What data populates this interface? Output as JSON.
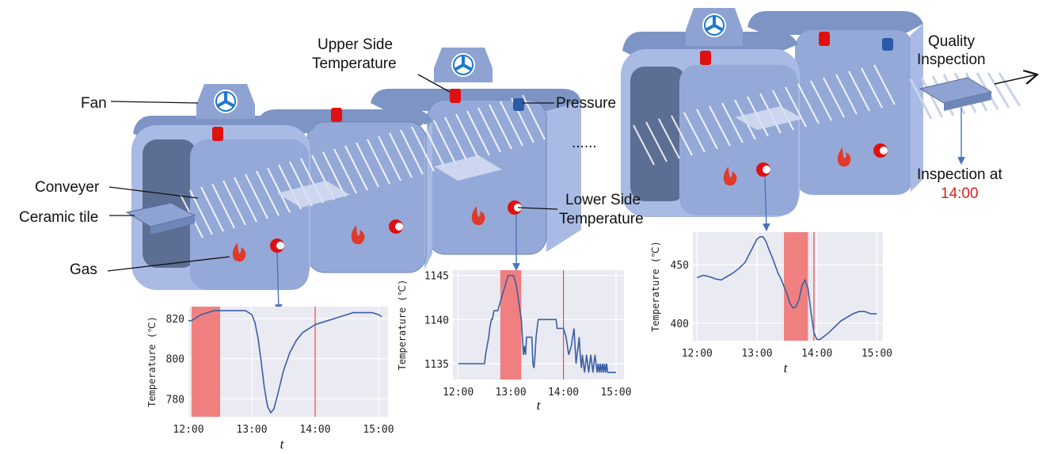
{
  "labels": {
    "fan": "Fan",
    "upper_side_1": "Upper Side",
    "upper_side_2": "Temperature",
    "pressure": "Pressure",
    "quality_1": "Quality",
    "quality_2": "Inspection",
    "conveyer": "Conveyer",
    "ceramic_tile": "Ceramic tile",
    "gas": "Gas",
    "lower_side_1": "Lower Side",
    "lower_side_2": "Temperature",
    "ellipsis": "......",
    "inspection_at": "Inspection at",
    "inspection_time": "14:00"
  },
  "colors": {
    "kiln_top": "#7d94c5",
    "kiln_front": "#95a9d8",
    "kiln_side": "#a9bbe4",
    "sensor_red": "#e01010",
    "sensor_blue": "#2a5aa8",
    "highlight_band": "#f08080",
    "marker_line": "#ee4444",
    "series_line": "#3a5fa6",
    "inspection_time": "#e02020"
  },
  "chart_data": [
    {
      "type": "line",
      "ylabel": "Temperature (℃)",
      "xlabel": "t",
      "xticks": [
        "12:00",
        "13:00",
        "14:00",
        "15:00"
      ],
      "xlim": [
        12.0,
        15.15
      ],
      "yticks": [
        780,
        800,
        820
      ],
      "ylim": [
        771,
        826
      ],
      "highlight": [
        12.05,
        12.5
      ],
      "marker": 14.0,
      "x": [
        12.0,
        12.05,
        12.1,
        12.2,
        12.3,
        12.4,
        12.5,
        12.6,
        12.7,
        12.8,
        12.9,
        13.0,
        13.05,
        13.1,
        13.15,
        13.2,
        13.25,
        13.3,
        13.35,
        13.4,
        13.5,
        13.6,
        13.7,
        13.8,
        13.9,
        14.0,
        14.1,
        14.2,
        14.3,
        14.4,
        14.5,
        14.6,
        14.7,
        14.8,
        14.9,
        15.0,
        15.05
      ],
      "y": [
        819,
        819,
        820,
        822,
        823,
        824,
        824,
        824,
        824,
        824,
        824,
        822,
        818,
        810,
        798,
        785,
        776,
        773,
        775,
        781,
        794,
        803,
        809,
        813,
        815,
        817,
        818,
        819,
        820,
        821,
        822,
        823,
        823,
        823,
        823,
        822,
        821
      ]
    },
    {
      "type": "line",
      "ylabel": "Temperature (℃)",
      "xlabel": "t",
      "xticks": [
        "12:00",
        "13:00",
        "14:00",
        "15:00"
      ],
      "xlim": [
        11.9,
        15.15
      ],
      "yticks": [
        1135,
        1140,
        1145
      ],
      "ylim": [
        1133.2,
        1145.6
      ],
      "highlight": [
        12.8,
        13.2
      ],
      "marker": 14.0,
      "x": [
        12.0,
        12.5,
        12.52,
        12.55,
        12.58,
        12.6,
        12.63,
        12.65,
        12.68,
        12.7,
        12.75,
        12.8,
        12.85,
        12.9,
        12.95,
        13.0,
        13.05,
        13.1,
        13.15,
        13.2,
        13.22,
        13.24,
        13.26,
        13.28,
        13.3,
        13.32,
        13.4,
        13.42,
        13.44,
        13.46,
        13.48,
        13.5,
        13.52,
        13.54,
        13.56,
        13.58,
        13.6,
        13.62,
        13.64,
        13.66,
        13.68,
        13.7,
        13.72,
        13.74,
        13.76,
        13.78,
        13.8,
        13.82,
        13.84,
        13.86,
        13.88,
        13.9,
        13.95,
        14.0,
        14.05,
        14.1,
        14.15,
        14.2,
        14.22,
        14.24,
        14.26,
        14.28,
        14.3,
        14.32,
        14.34,
        14.36,
        14.38,
        14.4,
        14.42,
        14.44,
        14.46,
        14.48,
        14.5,
        14.52,
        14.54,
        14.56,
        14.58,
        14.6,
        14.62,
        14.64,
        14.66,
        14.68,
        14.7,
        14.72,
        14.74,
        14.76,
        14.78,
        14.8,
        14.82,
        14.84,
        14.86,
        14.88,
        14.9,
        14.92,
        14.94,
        14.96,
        14.98,
        15.0
      ],
      "y": [
        1135,
        1135,
        1136,
        1137,
        1138,
        1139,
        1140,
        1140,
        1141,
        1141,
        1141,
        1142,
        1143,
        1144,
        1145,
        1145,
        1145,
        1144,
        1142,
        1140,
        1138,
        1136,
        1137,
        1136,
        1138,
        1138,
        1138,
        1135,
        1134.5,
        1136,
        1138,
        1139,
        1140,
        1140,
        1140,
        1140,
        1140,
        1140,
        1140,
        1140,
        1140,
        1140,
        1140,
        1140,
        1140,
        1140,
        1140,
        1140,
        1140,
        1140,
        1139,
        1139,
        1139,
        1139,
        1138,
        1136,
        1137,
        1139,
        1137,
        1135,
        1136,
        1137,
        1138,
        1136,
        1134.5,
        1136,
        1135,
        1134,
        1135,
        1136,
        1135,
        1134,
        1135,
        1136,
        1135,
        1134,
        1135,
        1136,
        1135,
        1134,
        1135,
        1134,
        1135,
        1134,
        1135,
        1134,
        1135,
        1134,
        1135,
        1134,
        1134,
        1134,
        1134,
        1134,
        1134,
        1134,
        1134,
        1134
      ]
    },
    {
      "type": "line",
      "ylabel": "Temperature (℃)",
      "xlabel": "t",
      "xticks": [
        "12:00",
        "13:00",
        "14:00",
        "15:00"
      ],
      "xlim": [
        11.93,
        15.1
      ],
      "yticks": [
        400,
        450
      ],
      "ylim": [
        385,
        478
      ],
      "highlight": [
        13.45,
        13.85
      ],
      "marker": 13.95,
      "x": [
        12.0,
        12.1,
        12.2,
        12.3,
        12.4,
        12.5,
        12.6,
        12.7,
        12.8,
        12.9,
        13.0,
        13.05,
        13.1,
        13.15,
        13.2,
        13.25,
        13.3,
        13.35,
        13.4,
        13.5,
        13.55,
        13.6,
        13.65,
        13.7,
        13.75,
        13.8,
        13.85,
        13.9,
        13.95,
        14.0,
        14.05,
        14.1,
        14.2,
        14.3,
        14.4,
        14.5,
        14.6,
        14.7,
        14.8,
        14.9,
        15.0
      ],
      "y": [
        439,
        441,
        440,
        438,
        437,
        440,
        443,
        447,
        452,
        462,
        472,
        474,
        474,
        470,
        463,
        457,
        450,
        443,
        438,
        425,
        417,
        413,
        414,
        420,
        432,
        437,
        430,
        410,
        392,
        386,
        386,
        388,
        392,
        397,
        402,
        405,
        408,
        410,
        410,
        408,
        408
      ]
    }
  ]
}
